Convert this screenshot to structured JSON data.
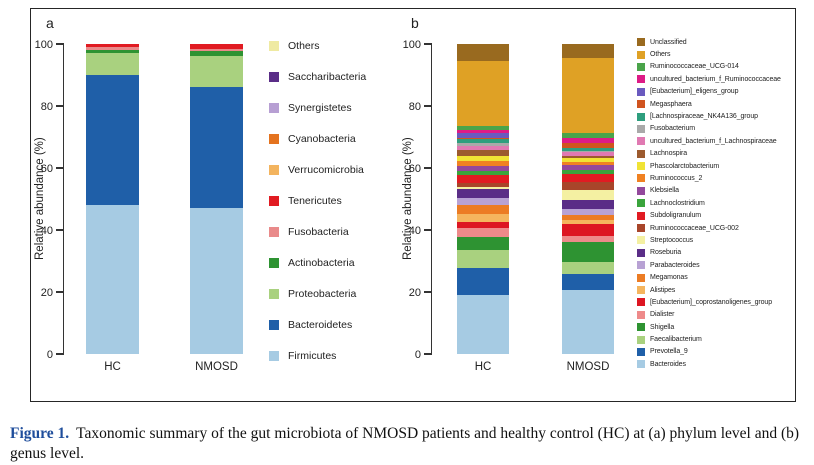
{
  "figure": {
    "panel_a_label": "a",
    "panel_b_label": "b",
    "caption_prefix": "Figure 1.",
    "caption_text": "Taxonomic summary of the gut microbiota of NMOSD patients and healthy control (HC) at (a) phylum level and (b) genus level.",
    "caption_prefix_color": "#1f4e9c"
  },
  "chart_data": [
    {
      "id": "phylum-level",
      "type": "bar",
      "subtype": "stacked-vertical",
      "title": "",
      "xlabel": "",
      "ylabel": "Relative abundance (%)",
      "ylim": [
        0,
        100
      ],
      "yticks": [
        0,
        20,
        40,
        60,
        80,
        100
      ],
      "grid": false,
      "legend_position": "right",
      "categories": [
        "HC",
        "NMOSD"
      ],
      "series": [
        {
          "name": "Others",
          "color": "#efeaa2",
          "values": [
            0,
            0
          ]
        },
        {
          "name": "Saccharibacteria",
          "color": "#5a2d87",
          "values": [
            0,
            0
          ]
        },
        {
          "name": "Synergistetes",
          "color": "#b79fd3",
          "values": [
            0,
            0
          ]
        },
        {
          "name": "Cyanobacteria",
          "color": "#e4731f",
          "values": [
            0,
            0
          ]
        },
        {
          "name": "Verrucomicrobia",
          "color": "#f3b45f",
          "values": [
            0,
            0
          ]
        },
        {
          "name": "Tenericutes",
          "color": "#e11b22",
          "values": [
            0.8,
            1.6
          ]
        },
        {
          "name": "Fusobacteria",
          "color": "#e98a8a",
          "values": [
            1.2,
            0.6
          ]
        },
        {
          "name": "Actinobacteria",
          "color": "#2e9332",
          "values": [
            1.0,
            1.8
          ]
        },
        {
          "name": "Proteobacteria",
          "color": "#a9d17f",
          "values": [
            7.0,
            10.0
          ]
        },
        {
          "name": "Bacteroidetes",
          "color": "#1f5fa8",
          "values": [
            42.0,
            39.0
          ]
        },
        {
          "name": "Firmicutes",
          "color": "#a6cbe3",
          "values": [
            48.0,
            47.0
          ]
        }
      ]
    },
    {
      "id": "genus-level",
      "type": "bar",
      "subtype": "stacked-vertical",
      "title": "",
      "xlabel": "",
      "ylabel": "Relative abundance (%)",
      "ylim": [
        0,
        100
      ],
      "yticks": [
        0,
        20,
        40,
        60,
        80,
        100
      ],
      "grid": false,
      "legend_position": "right",
      "categories": [
        "HC",
        "NMOSD"
      ],
      "series": [
        {
          "name": "Unclassified",
          "color": "#996a1f",
          "values": [
            5.5,
            4.5
          ]
        },
        {
          "name": "Others",
          "color": "#dfa125",
          "values": [
            21.0,
            24.0
          ]
        },
        {
          "name": "Ruminococcaceae_UCG-014",
          "color": "#4aa44a",
          "values": [
            1.3,
            1.6
          ]
        },
        {
          "name": "uncultured_bacterium_f_Ruminococcaceae",
          "color": "#dd1b86",
          "values": [
            1.0,
            1.6
          ]
        },
        {
          "name": "[Eubacterium]_eligens_group",
          "color": "#6a5abf",
          "values": [
            1.6,
            0.3
          ]
        },
        {
          "name": "Megasphaera",
          "color": "#d0541f",
          "values": [
            0.3,
            1.6
          ]
        },
        {
          "name": "[Lachnospiraceae_NK4A136_group",
          "color": "#2e9e7e",
          "values": [
            1.3,
            1.0
          ]
        },
        {
          "name": "Fusobacterium",
          "color": "#a9a9a9",
          "values": [
            1.0,
            0.3
          ]
        },
        {
          "name": "uncultured_bacterium_f_Lachnospiraceae",
          "color": "#e079b2",
          "values": [
            1.3,
            1.3
          ]
        },
        {
          "name": "Lachnospira",
          "color": "#9c5a2e",
          "values": [
            1.9,
            0.5
          ]
        },
        {
          "name": "Phascolarctobacterium",
          "color": "#f0e335",
          "values": [
            1.6,
            1.3
          ]
        },
        {
          "name": "Ruminococcus_2",
          "color": "#f08122",
          "values": [
            1.6,
            1.0
          ]
        },
        {
          "name": "Klebsiella",
          "color": "#93489c",
          "values": [
            1.6,
            1.6
          ]
        },
        {
          "name": "Lachnoclostridium",
          "color": "#3aa43c",
          "values": [
            1.3,
            1.3
          ]
        },
        {
          "name": "Subdoligranulum",
          "color": "#e11b22",
          "values": [
            2.6,
            2.6
          ]
        },
        {
          "name": "Ruminococcaceae_UCG-002",
          "color": "#a8452a",
          "values": [
            1.3,
            2.6
          ]
        },
        {
          "name": "Streptococcus",
          "color": "#f4f0a2",
          "values": [
            0.6,
            3.2
          ]
        },
        {
          "name": "Roseburia",
          "color": "#5a2d87",
          "values": [
            3.0,
            2.9
          ]
        },
        {
          "name": "Parabacteroides",
          "color": "#b8a2d4",
          "values": [
            2.0,
            1.9
          ]
        },
        {
          "name": "Megamonas",
          "color": "#ec7c24",
          "values": [
            3.0,
            1.6
          ]
        },
        {
          "name": "Alistipes",
          "color": "#f5b55e",
          "values": [
            2.5,
            1.3
          ]
        },
        {
          "name": "[Eubacterium]_coprostanoligenes_group",
          "color": "#dd1622",
          "values": [
            2.0,
            3.9
          ]
        },
        {
          "name": "Dialister",
          "color": "#ee8a8a",
          "values": [
            3.0,
            1.9
          ]
        },
        {
          "name": "Shigella",
          "color": "#2e9332",
          "values": [
            4.0,
            6.5
          ]
        },
        {
          "name": "Faecalibacterium",
          "color": "#a9d17f",
          "values": [
            6.0,
            3.9
          ]
        },
        {
          "name": "Prevotella_9",
          "color": "#1f5fa8",
          "values": [
            8.7,
            5.2
          ]
        },
        {
          "name": "Bacteroides",
          "color": "#a6cbe3",
          "values": [
            19.0,
            20.6
          ]
        }
      ]
    }
  ]
}
